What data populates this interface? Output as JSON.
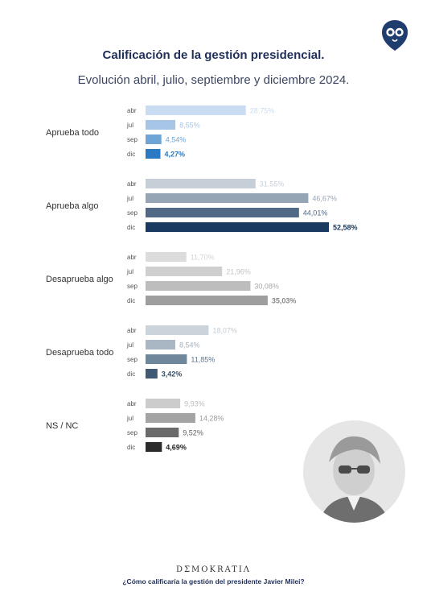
{
  "header": {
    "title": "Calificación de la gestión presidencial.",
    "subtitle": "Evolución abril, julio, septiembre y diciembre 2024."
  },
  "footer": {
    "brand": "DΣMOKRATIΛ",
    "question": "¿Cómo calificaría la gestión del presidente Javier Milei?"
  },
  "icons": {
    "logo": "owl-logo-icon",
    "photo": "president-portrait"
  },
  "chart_data": {
    "type": "bar",
    "orientation": "horizontal",
    "title": "Calificación de la gestión presidencial.",
    "subtitle": "Evolución abril, julio, septiembre y diciembre 2024.",
    "categories": [
      "abr",
      "jul",
      "sep",
      "dic"
    ],
    "groups": [
      {
        "name": "Aprueba todo",
        "values": [
          28.75,
          8.55,
          4.54,
          4.27
        ],
        "labels": [
          "28,75%",
          "8,55%",
          "4,54%",
          "4,27%"
        ],
        "colors": [
          "#c9dcf1",
          "#a7c6e7",
          "#6ea4d6",
          "#2b79c2"
        ],
        "label_colors": [
          "#c9dcf1",
          "#a7c6e7",
          "#6ea4d6",
          "#2b79c2"
        ]
      },
      {
        "name": "Aprueba algo",
        "values": [
          31.55,
          46.67,
          44.01,
          52.58
        ],
        "labels": [
          "31,55%",
          "46,67%",
          "44,01%",
          "52,58%"
        ],
        "colors": [
          "#c6cfd8",
          "#96a5b6",
          "#4f6987",
          "#1b3a61"
        ],
        "label_colors": [
          "#c6cfd8",
          "#96a5b6",
          "#4f6987",
          "#1b3a61"
        ]
      },
      {
        "name": "Desaprueba algo",
        "values": [
          11.7,
          21.96,
          30.08,
          35.03
        ],
        "labels": [
          "11,70%",
          "21,96%",
          "30,08%",
          "35,03%"
        ],
        "colors": [
          "#dcdcdc",
          "#cfcfcf",
          "#bdbdbd",
          "#9e9e9e"
        ],
        "label_colors": [
          "#d6d6d6",
          "#c4c4c4",
          "#a9a9a9",
          "#8a8a8a"
        ]
      },
      {
        "name": "Desaprueba todo",
        "values": [
          18.07,
          8.54,
          11.85,
          3.42
        ],
        "labels": [
          "18,07%",
          "8,54%",
          "11,85%",
          "3,42%"
        ],
        "colors": [
          "#ccd4db",
          "#a9b6c3",
          "#6e879b",
          "#3f5a72"
        ],
        "label_colors": [
          "#c4ccd4",
          "#a2afbc",
          "#5e7489",
          "#35506a"
        ]
      },
      {
        "name": "NS / NC",
        "values": [
          9.93,
          14.28,
          9.52,
          4.69
        ],
        "labels": [
          "9,93%",
          "14,28%",
          "9,52%",
          "4,69%"
        ],
        "colors": [
          "#cccccc",
          "#a3a3a3",
          "#6a6a6a",
          "#2b2b2b"
        ],
        "label_colors": [
          "#bdbdbd",
          "#9a9a9a",
          "#5f5f5f",
          "#222222"
        ]
      }
    ],
    "xlim": [
      0,
      52.58
    ],
    "grid": false,
    "legend": "none"
  }
}
